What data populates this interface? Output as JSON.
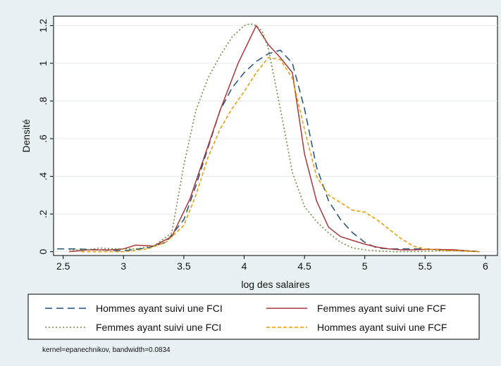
{
  "chart_data": {
    "type": "line",
    "xlabel": "log des salaires",
    "ylabel": "Densité",
    "xlim": [
      2.42,
      6.1
    ],
    "ylim": [
      -0.02,
      1.25
    ],
    "xticks": [
      2.5,
      3,
      3.5,
      4,
      4.5,
      5,
      5.5,
      6
    ],
    "xtick_labels": [
      "2.5",
      "3",
      "3.5",
      "4",
      "4.5",
      "5",
      "5.5",
      "6"
    ],
    "yticks": [
      0,
      0.2,
      0.4,
      0.6,
      0.8,
      1.0,
      1.2
    ],
    "ytick_labels": [
      "0",
      ".2",
      ".4",
      ".6",
      ".8",
      "1",
      "1.2"
    ],
    "grid": "horizontal",
    "legend_position": "bottom",
    "note": "kernel=epanechnikov, bandwidth=0.0834",
    "series": [
      {
        "name": "Hommes ayant suivi une FCI",
        "color": "#1f4e79",
        "dash": "long-dash",
        "x": [
          2.45,
          2.6,
          2.8,
          3.0,
          3.2,
          3.35,
          3.5,
          3.6,
          3.7,
          3.8,
          3.9,
          4.0,
          4.1,
          4.2,
          4.3,
          4.4,
          4.5,
          4.6,
          4.7,
          4.8,
          4.9,
          5.0,
          5.1,
          5.2,
          5.3,
          5.4,
          5.5,
          5.6,
          5.7,
          5.8,
          5.95
        ],
        "values": [
          0.015,
          0.015,
          0.01,
          0.005,
          0.02,
          0.05,
          0.17,
          0.35,
          0.55,
          0.75,
          0.87,
          0.95,
          1.01,
          1.05,
          1.07,
          1.0,
          0.76,
          0.45,
          0.27,
          0.17,
          0.1,
          0.05,
          0.02,
          0.015,
          0.015,
          0.015,
          0.015,
          0.01,
          0.01,
          0.005,
          0.002
        ]
      },
      {
        "name": "Femmes ayant suivi une FCF",
        "color": "#a8373c",
        "dash": "solid",
        "x": [
          2.55,
          2.7,
          2.9,
          3.0,
          3.1,
          3.25,
          3.4,
          3.55,
          3.7,
          3.8,
          3.95,
          4.1,
          4.2,
          4.3,
          4.4,
          4.5,
          4.6,
          4.7,
          4.8,
          4.9,
          5.0,
          5.1,
          5.2,
          5.3,
          5.4,
          5.5,
          5.6,
          5.75,
          5.95
        ],
        "values": [
          0.0,
          0.01,
          0.01,
          0.015,
          0.035,
          0.03,
          0.08,
          0.28,
          0.56,
          0.75,
          1.0,
          1.2,
          1.1,
          1.03,
          0.95,
          0.52,
          0.27,
          0.13,
          0.08,
          0.06,
          0.04,
          0.025,
          0.015,
          0.01,
          0.01,
          0.012,
          0.012,
          0.01,
          0.0
        ]
      },
      {
        "name": "Femmes ayant suivi une FCI",
        "color": "#6e8b3d",
        "dash": "dotted",
        "x": [
          2.55,
          2.7,
          2.8,
          2.95,
          3.1,
          3.25,
          3.4,
          3.5,
          3.6,
          3.7,
          3.8,
          3.9,
          4.0,
          4.05,
          4.1,
          4.15,
          4.2,
          4.3,
          4.4,
          4.5,
          4.6,
          4.7,
          4.8,
          4.9,
          5.0,
          5.1,
          5.25,
          5.4,
          5.6,
          5.75,
          5.95
        ],
        "values": [
          0.01,
          0.01,
          0.02,
          0.015,
          0.015,
          0.03,
          0.1,
          0.46,
          0.75,
          0.92,
          1.04,
          1.14,
          1.2,
          1.21,
          1.2,
          1.17,
          1.08,
          0.76,
          0.42,
          0.24,
          0.16,
          0.1,
          0.05,
          0.02,
          0.01,
          0.005,
          0.0,
          0.0,
          0.005,
          0.005,
          0.0
        ]
      },
      {
        "name": "Hommes ayant suivi une FCF",
        "color": "#e69a00",
        "dash": "short-dash",
        "x": [
          2.65,
          2.8,
          3.0,
          3.2,
          3.35,
          3.5,
          3.6,
          3.7,
          3.8,
          3.9,
          4.0,
          4.1,
          4.2,
          4.3,
          4.4,
          4.5,
          4.6,
          4.7,
          4.8,
          4.9,
          5.0,
          5.1,
          5.2,
          5.3,
          5.4,
          5.5,
          5.6,
          5.7,
          5.8,
          5.95
        ],
        "values": [
          0.0,
          0.0,
          0.0,
          0.015,
          0.05,
          0.14,
          0.3,
          0.5,
          0.65,
          0.76,
          0.85,
          0.95,
          1.03,
          1.02,
          0.92,
          0.65,
          0.4,
          0.3,
          0.26,
          0.22,
          0.21,
          0.17,
          0.12,
          0.07,
          0.03,
          0.015,
          0.01,
          0.005,
          0.005,
          0.0
        ]
      }
    ],
    "legend_order": [
      0,
      1,
      2,
      3
    ]
  }
}
